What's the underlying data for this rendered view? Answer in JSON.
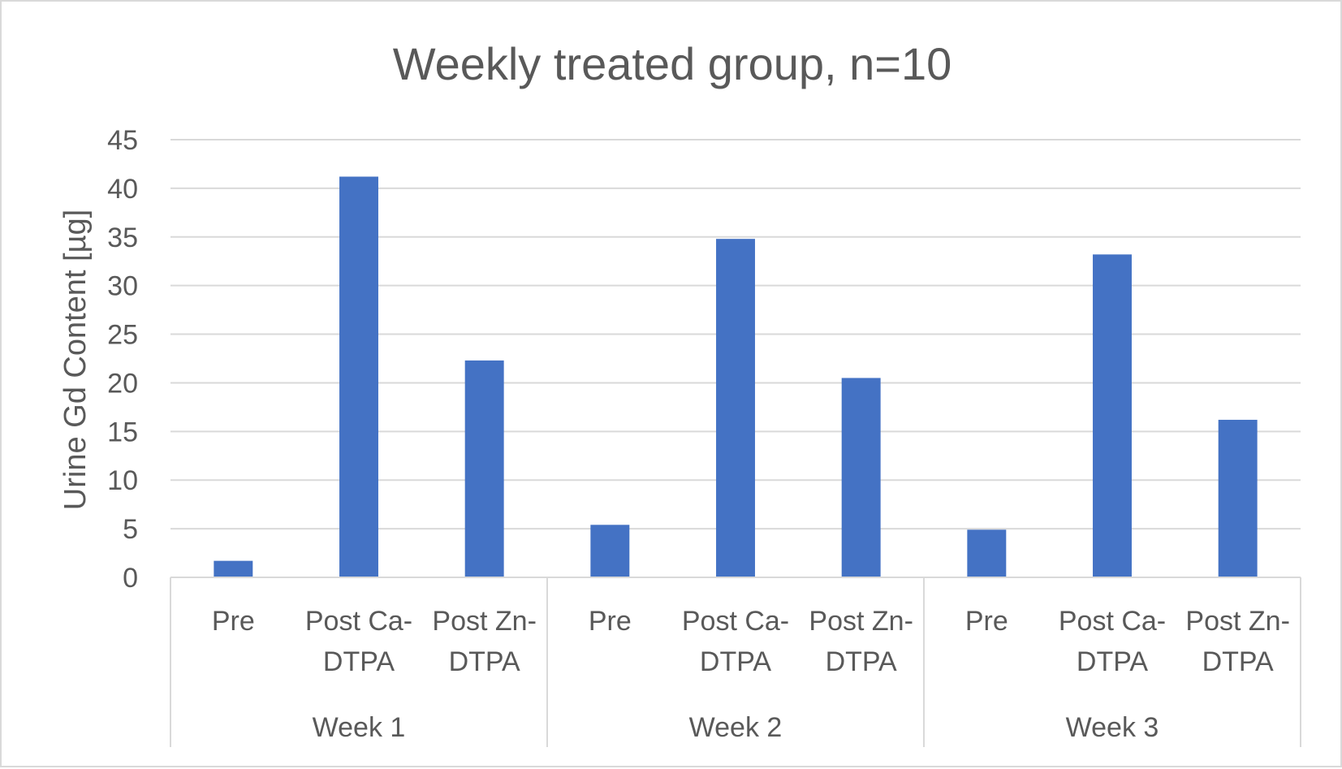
{
  "chart_data": {
    "type": "bar",
    "title": "Weekly treated group, n=10",
    "ylabel": "Urine Gd Content [µg]",
    "xlabel": "",
    "ylim": [
      0,
      45
    ],
    "yticks": [
      0,
      5,
      10,
      15,
      20,
      25,
      30,
      35,
      40,
      45
    ],
    "grid": true,
    "legend": "none",
    "bar_color": "#4472c4",
    "groups": [
      {
        "label": "Week 1",
        "categories": [
          [
            "Pre"
          ],
          [
            "Post Ca-",
            "DTPA"
          ],
          [
            "Post Zn-",
            "DTPA"
          ]
        ],
        "values": [
          1.7,
          41.2,
          22.3
        ]
      },
      {
        "label": "Week 2",
        "categories": [
          [
            "Pre"
          ],
          [
            "Post Ca-",
            "DTPA"
          ],
          [
            "Post Zn-",
            "DTPA"
          ]
        ],
        "values": [
          5.4,
          34.8,
          20.5
        ]
      },
      {
        "label": "Week 3",
        "categories": [
          [
            "Pre"
          ],
          [
            "Post Ca-",
            "DTPA"
          ],
          [
            "Post Zn-",
            "DTPA"
          ]
        ],
        "values": [
          4.9,
          33.2,
          16.2
        ]
      }
    ]
  }
}
